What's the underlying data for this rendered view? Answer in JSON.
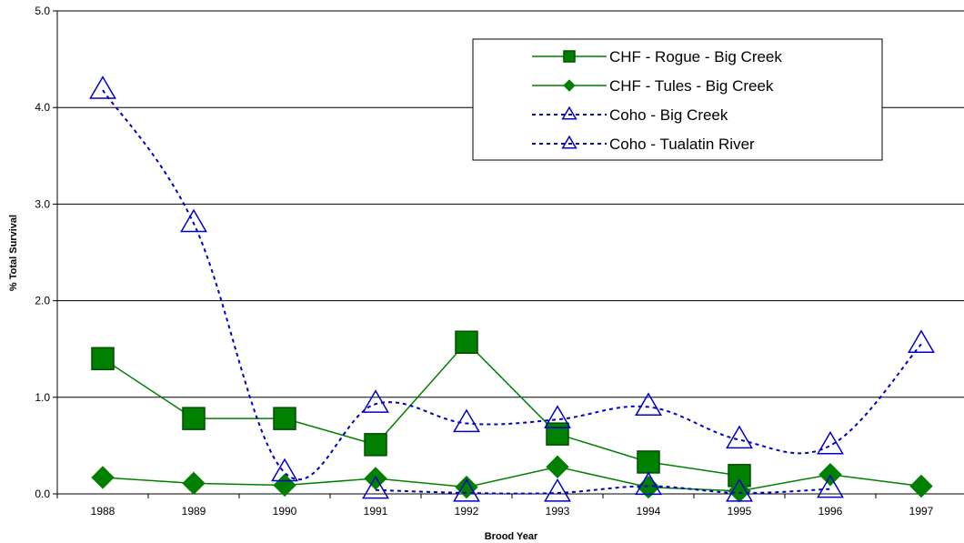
{
  "chart_data": {
    "type": "line",
    "title": "",
    "xlabel": "Brood Year",
    "ylabel": "% Total Survival",
    "categories": [
      "1988",
      "1989",
      "1990",
      "1991",
      "1992",
      "1993",
      "1994",
      "1995",
      "1996",
      "1997"
    ],
    "ylim": [
      0,
      5
    ],
    "yticks": [
      "0.0",
      "1.0",
      "2.0",
      "3.0",
      "4.0",
      "5.0"
    ],
    "grid": true,
    "legend_position": "top-right",
    "series": [
      {
        "name": "CHF -  Rogue -  Big Creek",
        "color": "#008000",
        "style": "solid",
        "marker": "square",
        "values": [
          1.4,
          0.78,
          0.78,
          0.51,
          1.57,
          0.62,
          0.33,
          0.19,
          null,
          null
        ]
      },
      {
        "name": "CHF -  Tules -  Big Creek",
        "color": "#008000",
        "style": "solid",
        "marker": "diamond",
        "values": [
          0.17,
          0.11,
          0.09,
          0.16,
          0.07,
          0.28,
          0.07,
          0.03,
          0.2,
          0.08
        ]
      },
      {
        "name": "Coho -  Big Creek",
        "color": "#0000cc",
        "style": "dotted",
        "marker": "triangle-open",
        "values": [
          4.18,
          2.8,
          0.22,
          0.93,
          0.73,
          0.77,
          0.9,
          0.56,
          0.5,
          1.55
        ]
      },
      {
        "name": "Coho -  Tualatin River",
        "color": "#0000cc",
        "style": "dotted",
        "marker": "triangle-open",
        "values": [
          null,
          null,
          null,
          0.04,
          0.01,
          0.01,
          0.08,
          0.01,
          0.05,
          null
        ]
      }
    ]
  }
}
